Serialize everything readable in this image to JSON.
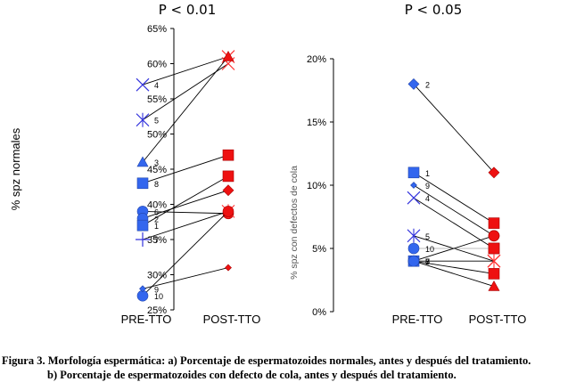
{
  "chart_data": [
    {
      "type": "line",
      "title": "P < 0.01",
      "xlabel": "",
      "ylabel": "% spz  normales",
      "categories": [
        "PRE-TTO",
        "POST-TTO"
      ],
      "ylim": [
        25,
        65
      ],
      "yticks": [
        "25%",
        "30%",
        "35%",
        "40%",
        "45%",
        "50%",
        "55%",
        "60%",
        "65%"
      ],
      "ytick_values": [
        25,
        30,
        35,
        40,
        45,
        50,
        55,
        60,
        65
      ],
      "grid": false,
      "series": [
        {
          "name": "4",
          "values": [
            57,
            61
          ],
          "pre_marker": "x",
          "post_marker": "x",
          "line_color": "#000000"
        },
        {
          "name": "5",
          "values": [
            52,
            60
          ],
          "pre_marker": "star",
          "post_marker": "x",
          "line_color": "#000000"
        },
        {
          "name": "3",
          "values": [
            46,
            61
          ],
          "pre_marker": "triangle",
          "post_marker": "triangle",
          "line_color": "#000000"
        },
        {
          "name": "8",
          "values": [
            43,
            47
          ],
          "pre_marker": "square",
          "post_marker": "square",
          "line_color": "#000000"
        },
        {
          "name": "6",
          "values": [
            39,
            38.7
          ],
          "pre_marker": "circle",
          "post_marker": "circle",
          "line_color": "#000000"
        },
        {
          "name": "2",
          "values": [
            38,
            42
          ],
          "pre_marker": "circle",
          "post_marker": "diamond",
          "line_color": "#000000"
        },
        {
          "name": "1",
          "values": [
            37,
            44
          ],
          "pre_marker": "square",
          "post_marker": "square",
          "line_color": "#000000"
        },
        {
          "name": "7",
          "values": [
            35,
            39
          ],
          "pre_marker": "plus",
          "post_marker": "star",
          "line_color": "#000000"
        },
        {
          "name": "10",
          "values": [
            27,
            39
          ],
          "pre_marker": "circle",
          "post_marker": "circle",
          "line_color": "#000000"
        },
        {
          "name": "9",
          "values": [
            28,
            31
          ],
          "pre_marker": "diamond-small",
          "post_marker": "diamond-small",
          "line_color": "#000000"
        }
      ]
    },
    {
      "type": "line",
      "title": "P < 0.05",
      "xlabel": "",
      "ylabel": "% spz con defectos de cola",
      "categories": [
        "PRE-TTO",
        "POST-TTO"
      ],
      "ylim": [
        0,
        20
      ],
      "yticks": [
        "0%",
        "5%",
        "10%",
        "15%",
        "20%"
      ],
      "ytick_values": [
        0,
        5,
        10,
        15,
        20
      ],
      "grid": false,
      "series": [
        {
          "name": "2",
          "values": [
            18,
            11
          ],
          "pre_marker": "diamond",
          "post_marker": "diamond",
          "line_color": "#000000"
        },
        {
          "name": "1",
          "values": [
            11,
            7
          ],
          "pre_marker": "square",
          "post_marker": "square",
          "line_color": "#000000"
        },
        {
          "name": "9",
          "values": [
            10,
            6
          ],
          "pre_marker": "diamond-small",
          "post_marker": "circle",
          "line_color": "#000000"
        },
        {
          "name": "4",
          "values": [
            9,
            5
          ],
          "pre_marker": "x",
          "post_marker": "square",
          "line_color": "#000000"
        },
        {
          "name": "5",
          "values": [
            6,
            4
          ],
          "pre_marker": "star",
          "post_marker": "x",
          "line_color": "#000000"
        },
        {
          "name": "10",
          "values": [
            5,
            5
          ],
          "pre_marker": "circle",
          "post_marker": "square",
          "line_color": "#bbbbbb"
        },
        {
          "name": "6",
          "values": [
            4,
            6
          ],
          "pre_marker": "circle",
          "post_marker": "circle",
          "line_color": "#000000"
        },
        {
          "name": "3",
          "values": [
            4,
            4
          ],
          "pre_marker": "square",
          "post_marker": "star",
          "line_color": "#000000"
        },
        {
          "name": "7",
          "values": [
            4,
            3
          ],
          "pre_marker": "circle",
          "post_marker": "square",
          "line_color": "#000000"
        },
        {
          "name": "8",
          "values": [
            4,
            2
          ],
          "pre_marker": "circle",
          "post_marker": "triangle",
          "line_color": "#000000"
        }
      ]
    }
  ],
  "colors": {
    "pre": "#3366ee",
    "post": "#ee1111",
    "pre_cross": "#3333dd",
    "post_cross": "#ff3333",
    "axis": "#000000"
  },
  "caption": {
    "line1": "Figura 3. Morfología espermática: a) Porcentaje de espermatozoides normales, antes y después del tratamiento.",
    "line2": "b) Porcentaje de espermatozoides con defecto de cola, antes y después del tratamiento."
  }
}
